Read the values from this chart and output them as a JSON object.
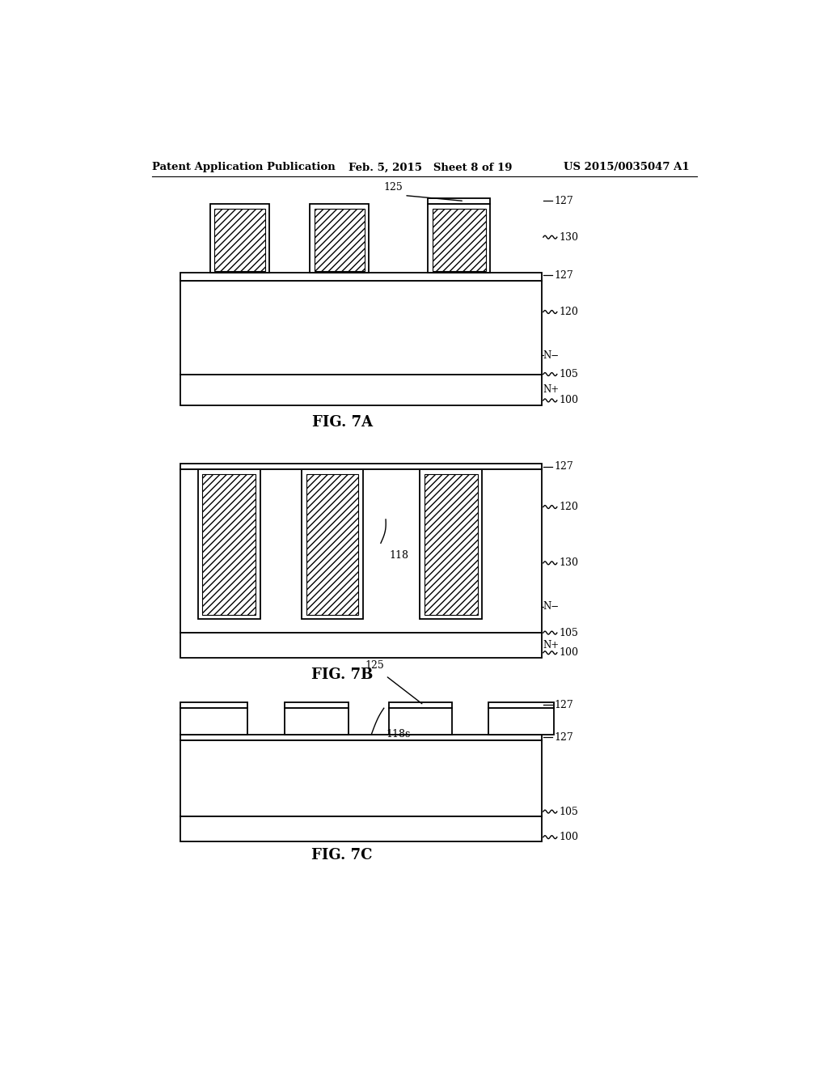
{
  "header_left": "Patent Application Publication",
  "header_center": "Feb. 5, 2015   Sheet 8 of 19",
  "header_right": "US 2015/0035047 A1",
  "fig7a_caption": "FIG. 7A",
  "fig7b_caption": "FIG. 7B",
  "fig7c_caption": "FIG. 7C",
  "background_color": "#ffffff",
  "line_color": "#000000"
}
